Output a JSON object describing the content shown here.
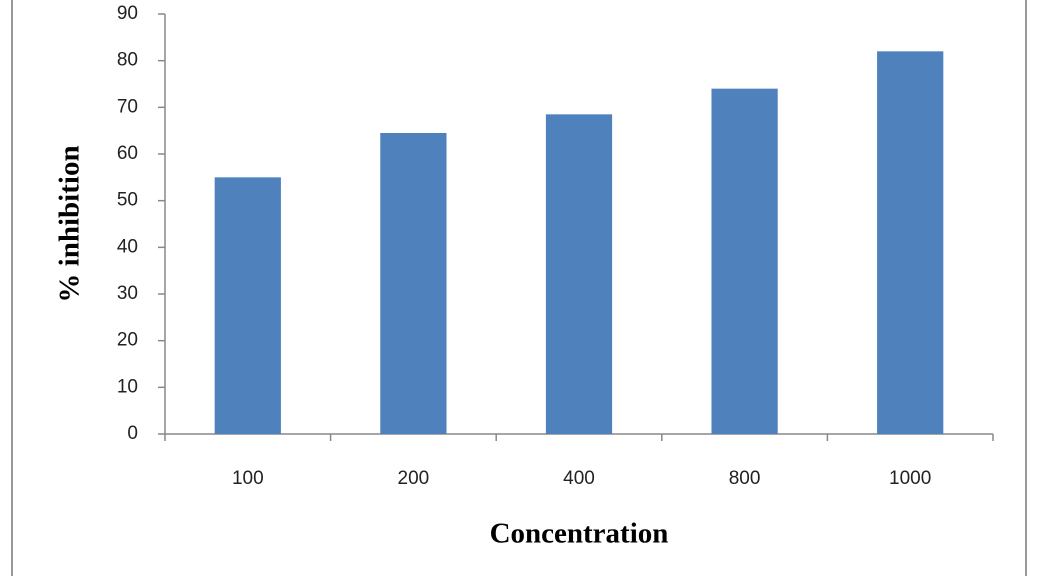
{
  "chart_data": {
    "type": "bar",
    "x_label": "Concentration",
    "y_label": "% inhibition",
    "categories": [
      "100",
      "200",
      "400",
      "800",
      "1000"
    ],
    "values": [
      55,
      64.5,
      68.5,
      74,
      82
    ],
    "color": "#4f81bd",
    "ylim": [
      0,
      90
    ],
    "yticks": [
      0,
      10,
      20,
      30,
      40,
      50,
      60,
      70,
      80,
      90
    ]
  }
}
